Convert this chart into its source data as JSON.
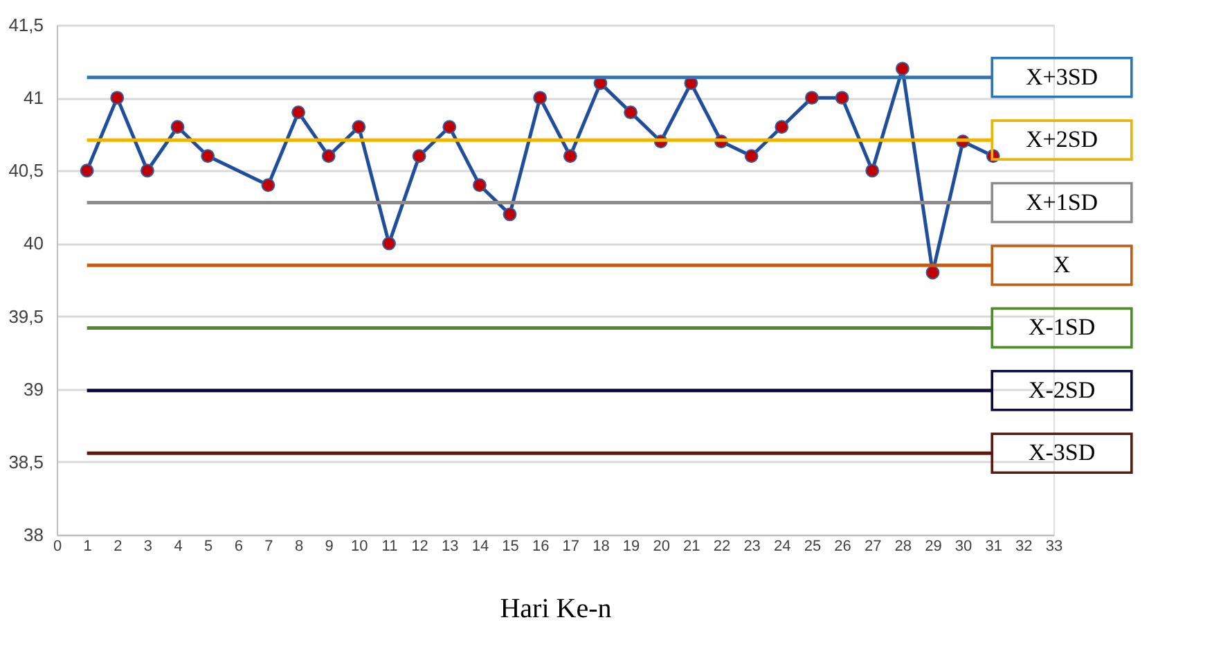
{
  "chart_data": {
    "type": "line",
    "xlabel": "Hari Ke-n",
    "x": [
      1,
      2,
      3,
      4,
      5,
      7,
      8,
      9,
      10,
      11,
      12,
      13,
      14,
      15,
      16,
      17,
      18,
      19,
      20,
      21,
      22,
      23,
      24,
      25,
      26,
      27,
      28,
      29,
      30,
      31
    ],
    "series": [
      {
        "color": "#c00000",
        "values": [
          40.5,
          41,
          40.5,
          40.8,
          40.6,
          40.4,
          40.9,
          40.6,
          40.8,
          40.0,
          40.6,
          40.8,
          40.4,
          40.2,
          41,
          40.6,
          41.1,
          40.9,
          40.7,
          41.1,
          40.7,
          40.6,
          40.8,
          41,
          41,
          40.5,
          41.2,
          39.8,
          40.7,
          40.6
        ]
      }
    ],
    "xlim": [
      0,
      33
    ],
    "xticks": [
      0,
      1,
      2,
      3,
      4,
      5,
      6,
      7,
      8,
      9,
      10,
      11,
      12,
      13,
      14,
      15,
      16,
      17,
      18,
      19,
      20,
      21,
      22,
      23,
      24,
      25,
      26,
      27,
      28,
      29,
      30,
      31,
      32,
      33
    ],
    "ylim": [
      38,
      41.5
    ],
    "yticks": [
      38,
      {
        "value": 38.5,
        "label": "38,5"
      },
      39,
      {
        "value": 39.5,
        "label": "39,5"
      },
      40,
      {
        "value": 40.5,
        "label": "40,5"
      },
      41,
      {
        "value": 41.5,
        "label": "41,5"
      }
    ],
    "ref_lines": [
      {
        "axis": "y",
        "value": 41.14,
        "label": "X+3SD",
        "color": "#2e75b6"
      },
      {
        "axis": "y",
        "value": 40.71,
        "label": "X+2SD",
        "color": "#f0b400"
      },
      {
        "axis": "y",
        "value": 40.28,
        "label": "X+1SD",
        "color": "#8c8c8c"
      },
      {
        "axis": "y",
        "value": 39.85,
        "label": "X",
        "color": "#c55a11"
      },
      {
        "axis": "y",
        "value": 39.42,
        "label": "X-1SD",
        "color": "#4f8a2b"
      },
      {
        "axis": "y",
        "value": 38.99,
        "label": "X-2SD",
        "color": "#0a0a3c"
      },
      {
        "axis": "y",
        "value": 38.56,
        "label": "X-3SD",
        "color": "#5a1a10"
      }
    ],
    "grid": "y",
    "marker": "circle",
    "line_style": "solid"
  }
}
